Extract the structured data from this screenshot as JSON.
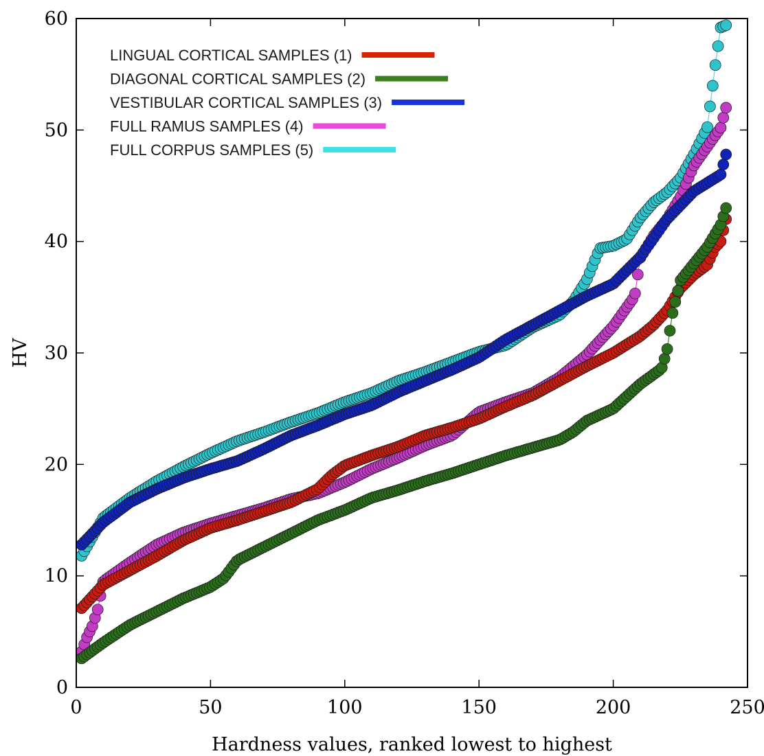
{
  "chart_data": {
    "type": "scatter",
    "title": "",
    "xlabel": "Hardness values, ranked lowest to highest",
    "ylabel": "HV",
    "xlim": [
      0,
      250
    ],
    "ylim": [
      0,
      60
    ],
    "x_ticks": [
      0,
      50,
      100,
      150,
      200,
      250
    ],
    "y_ticks": [
      0,
      10,
      20,
      30,
      40,
      50,
      60
    ],
    "grid": false,
    "legend_position": "top-left",
    "series": [
      {
        "name": "LINGUAL CORTICAL SAMPLES (1)",
        "color": "#dd2200",
        "marker_color": "#c81c10",
        "n": 242,
        "x": [
          2,
          10,
          20,
          30,
          40,
          50,
          60,
          70,
          80,
          90,
          95,
          100,
          110,
          120,
          130,
          140,
          150,
          160,
          170,
          180,
          190,
          200,
          210,
          215,
          220,
          225,
          230,
          235,
          238,
          240,
          242
        ],
        "y": [
          7.1,
          9.2,
          10.5,
          11.8,
          13.2,
          14.3,
          15.0,
          15.8,
          16.6,
          17.8,
          19.0,
          19.9,
          20.8,
          21.6,
          22.6,
          23.3,
          24.1,
          25.2,
          26.2,
          27.5,
          28.8,
          30.0,
          31.5,
          32.5,
          33.8,
          35.8,
          37.0,
          37.9,
          39.5,
          40.0,
          42.0
        ]
      },
      {
        "name": "DIAGONAL CORTICAL SAMPLES (2)",
        "color": "#3c7f1f",
        "marker_color": "#2a6e1c",
        "n": 242,
        "x": [
          2,
          10,
          20,
          30,
          40,
          50,
          55,
          60,
          70,
          80,
          90,
          100,
          110,
          120,
          130,
          140,
          150,
          160,
          170,
          180,
          185,
          190,
          200,
          210,
          218,
          220,
          222,
          225,
          230,
          235,
          240,
          242
        ],
        "y": [
          2.6,
          4.0,
          5.6,
          6.8,
          8.0,
          9.0,
          9.8,
          11.4,
          12.6,
          13.8,
          15.0,
          15.9,
          17.0,
          17.7,
          18.5,
          19.2,
          20.0,
          20.8,
          21.5,
          22.2,
          22.9,
          23.9,
          25.0,
          27.2,
          28.6,
          30.2,
          33.5,
          36.5,
          38.0,
          39.5,
          41.5,
          43.0
        ]
      },
      {
        "name": "VESTIBULAR CORTICAL SAMPLES (3)",
        "color": "#1533d6",
        "marker_color": "#1022b8",
        "n": 242,
        "x": [
          2,
          10,
          20,
          30,
          40,
          50,
          60,
          70,
          80,
          90,
          100,
          110,
          120,
          130,
          140,
          150,
          160,
          170,
          180,
          190,
          200,
          210,
          220,
          230,
          240,
          242
        ],
        "y": [
          12.8,
          14.8,
          16.6,
          17.8,
          18.8,
          19.6,
          20.3,
          21.4,
          22.6,
          23.5,
          24.5,
          25.3,
          26.5,
          27.5,
          28.5,
          29.6,
          31.2,
          32.5,
          33.8,
          35.1,
          36.2,
          38.6,
          42.0,
          44.5,
          46.0,
          47.8
        ]
      },
      {
        "name": "FULL RAMUS SAMPLES (4)",
        "color": "#e64bdc",
        "marker_color": "#c23bc4",
        "n": 242,
        "x": [
          2,
          4,
          6,
          8,
          10,
          20,
          30,
          40,
          50,
          60,
          70,
          80,
          90,
          100,
          110,
          120,
          130,
          140,
          150,
          160,
          170,
          180,
          190,
          200,
          208,
          210,
          215,
          220,
          225,
          230,
          235,
          240,
          242
        ],
        "y": [
          3.2,
          4.5,
          5.5,
          7.0,
          9.5,
          11.2,
          12.8,
          13.9,
          14.7,
          15.4,
          16.1,
          16.9,
          17.4,
          18.4,
          19.6,
          20.6,
          21.7,
          22.6,
          24.7,
          25.6,
          26.4,
          27.8,
          29.8,
          32.4,
          35.1,
          38.5,
          40.5,
          42.0,
          44.0,
          46.8,
          48.5,
          50.2,
          52.0
        ]
      },
      {
        "name": "FULL CORPUS SAMPLES (5)",
        "color": "#3ee0e6",
        "marker_color": "#2fc4cc",
        "n": 242,
        "x": [
          2,
          10,
          20,
          30,
          40,
          50,
          60,
          70,
          80,
          90,
          100,
          110,
          120,
          130,
          140,
          150,
          160,
          170,
          180,
          185,
          190,
          195,
          200,
          205,
          210,
          215,
          220,
          225,
          230,
          235,
          238,
          240,
          242
        ],
        "y": [
          11.8,
          15.2,
          17.0,
          18.5,
          19.8,
          21.0,
          22.1,
          22.9,
          23.8,
          24.6,
          25.6,
          26.4,
          27.5,
          28.3,
          29.2,
          30.1,
          30.7,
          32.3,
          33.4,
          34.6,
          36.5,
          39.4,
          39.6,
          40.2,
          42.1,
          43.5,
          44.4,
          45.7,
          47.8,
          50.2,
          55.8,
          59.2,
          59.4
        ]
      }
    ]
  }
}
